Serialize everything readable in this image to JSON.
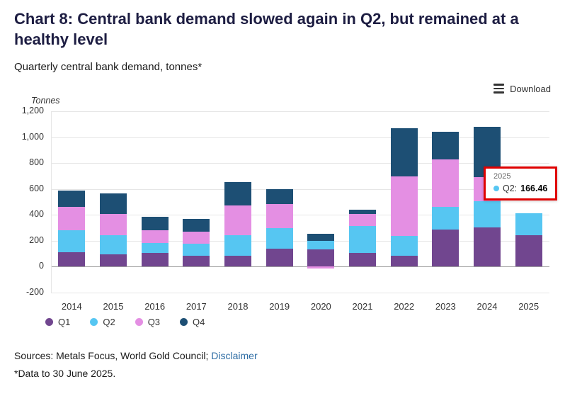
{
  "header": {
    "title": "Chart 8: Central bank demand slowed again in Q2, but remained at a healthy level",
    "subtitle": "Quarterly central bank demand, tonnes*"
  },
  "toolbar": {
    "download_label": "Download"
  },
  "axis": {
    "unit_label": "Tonnes"
  },
  "tooltip": {
    "year": "2025",
    "series_label": "Q2:",
    "value": "166.46",
    "border_color": "#e00000",
    "dot_color": "#56c6f2"
  },
  "footer": {
    "sources_prefix": "Sources: Metals Focus, World Gold Council; ",
    "disclaimer_label": "Disclaimer",
    "link_color": "#2e6da4",
    "footnote": "*Data to 30 June 2025."
  },
  "chart_data": {
    "type": "bar",
    "stacked": true,
    "title": "Quarterly central bank demand, tonnes*",
    "ylabel": "Tonnes",
    "ylim": [
      -200,
      1200
    ],
    "grid": true,
    "legend_position": "bottom-left",
    "categories": [
      "2014",
      "2015",
      "2016",
      "2017",
      "2018",
      "2019",
      "2020",
      "2021",
      "2022",
      "2023",
      "2024",
      "2025"
    ],
    "series": [
      {
        "name": "Q1",
        "color": "#71468f",
        "values": [
          110,
          97,
          105,
          85,
          86,
          140,
          135,
          105,
          82,
          286,
          306,
          244
        ]
      },
      {
        "name": "Q2",
        "color": "#56c6f2",
        "values": [
          170,
          145,
          80,
          95,
          160,
          160,
          65,
          210,
          158,
          175,
          202,
          166.46
        ]
      },
      {
        "name": "Q3",
        "color": "#e48fe3",
        "values": [
          180,
          165,
          95,
          90,
          225,
          185,
          -12,
          95,
          459,
          370,
          186,
          0
        ]
      },
      {
        "name": "Q4",
        "color": "#1d4f74",
        "values": [
          130,
          160,
          105,
          100,
          180,
          115,
          55,
          30,
          371,
          210,
          385,
          0
        ]
      }
    ],
    "yticks": [
      {
        "value": 1200,
        "label": "1,200"
      },
      {
        "value": 1000,
        "label": "1,000"
      },
      {
        "value": 800,
        "label": "800"
      },
      {
        "value": 600,
        "label": "600"
      },
      {
        "value": 400,
        "label": "400"
      },
      {
        "value": 200,
        "label": "200"
      },
      {
        "value": 0,
        "label": "0"
      },
      {
        "value": -200,
        "label": "-200"
      }
    ]
  }
}
